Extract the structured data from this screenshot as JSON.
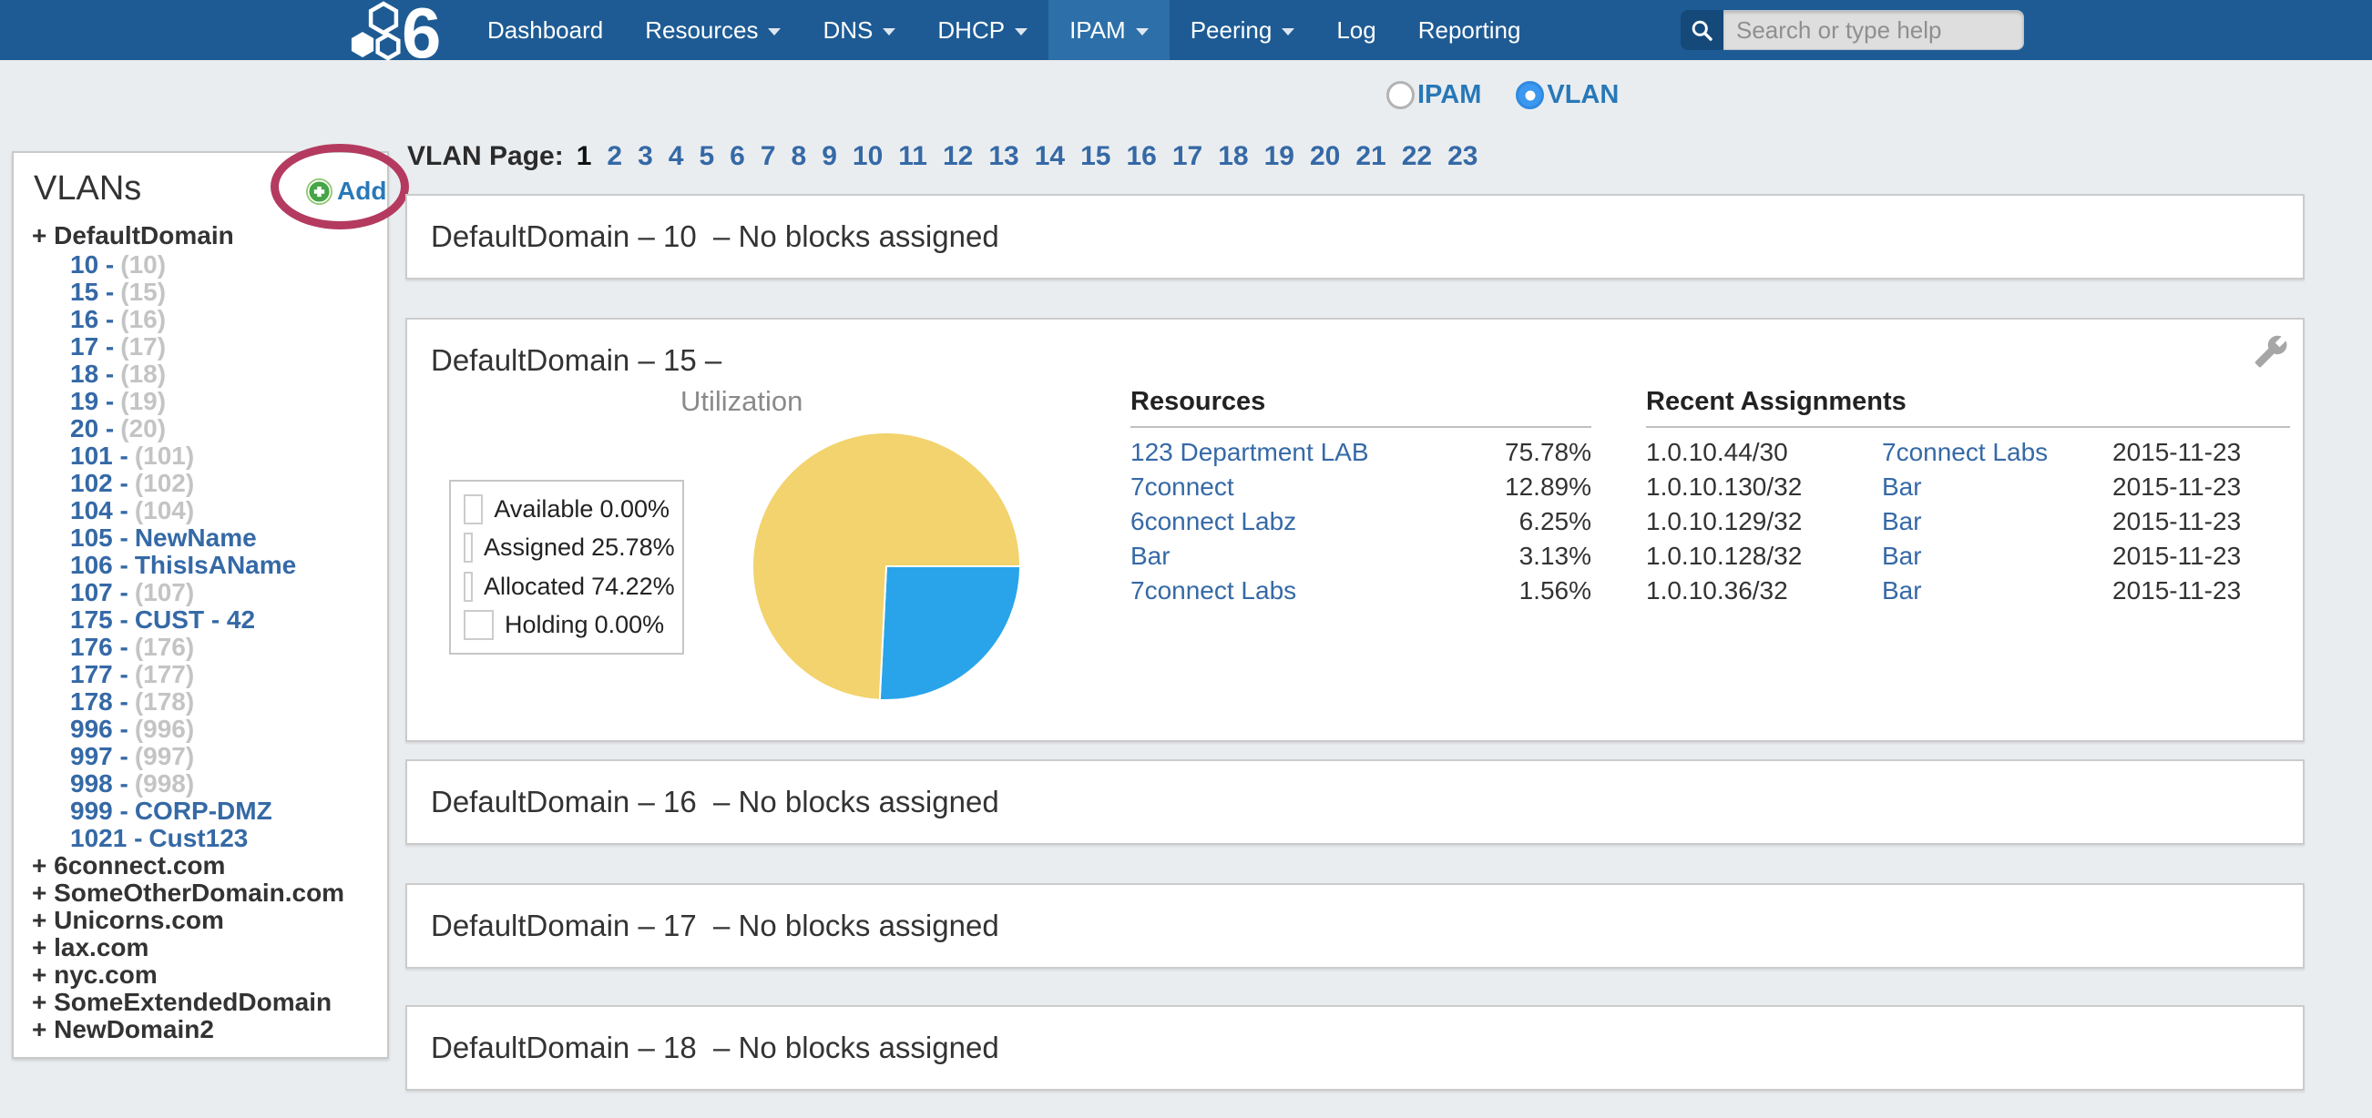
{
  "colors": {
    "page_bg": "#eaedf0",
    "header_bg": "#1e5b94",
    "header_active": "#2d70a9",
    "icon_navy": "#15497a",
    "link": "#3569a6",
    "label_blue": "#2878b8",
    "radio_blue": "#3b97ef",
    "annotation": "#b43a60",
    "panel_border": "#cbcbcb",
    "muted_gray": "#c4c4c4",
    "text_dark": "#333333",
    "add_green": "#3fae49"
  },
  "nav": {
    "brand": "6",
    "items": [
      {
        "label": "Dashboard"
      },
      {
        "label": "Resources",
        "caret": true
      },
      {
        "label": "DNS",
        "caret": true
      },
      {
        "label": "DHCP",
        "caret": true
      },
      {
        "label": "IPAM",
        "caret": true,
        "active": true
      },
      {
        "label": "Peering",
        "caret": true
      },
      {
        "label": "Log"
      },
      {
        "label": "Reporting"
      }
    ],
    "search_placeholder": "Search or type help"
  },
  "view_toggle": {
    "options": [
      {
        "label": "IPAM",
        "selected": false
      },
      {
        "label": "VLAN",
        "selected": true
      }
    ]
  },
  "sidebar": {
    "title": "VLANs",
    "add_label": "Add",
    "root_domain": "+ DefaultDomain",
    "vlans": [
      {
        "id_label": "10 -",
        "name": "(10)",
        "custom": false
      },
      {
        "id_label": "15 -",
        "name": "(15)",
        "custom": false
      },
      {
        "id_label": "16 -",
        "name": "(16)",
        "custom": false
      },
      {
        "id_label": "17 -",
        "name": "(17)",
        "custom": false
      },
      {
        "id_label": "18 -",
        "name": "(18)",
        "custom": false
      },
      {
        "id_label": "19 -",
        "name": "(19)",
        "custom": false
      },
      {
        "id_label": "20 -",
        "name": "(20)",
        "custom": false
      },
      {
        "id_label": "101 -",
        "name": "(101)",
        "custom": false
      },
      {
        "id_label": "102 -",
        "name": "(102)",
        "custom": false
      },
      {
        "id_label": "104 -",
        "name": "(104)",
        "custom": false
      },
      {
        "id_label": "105 -",
        "name": "NewName",
        "custom": true
      },
      {
        "id_label": "106 -",
        "name": "ThisIsAName",
        "custom": true
      },
      {
        "id_label": "107 -",
        "name": "(107)",
        "custom": false
      },
      {
        "id_label": "175 -",
        "name": "CUST - 42",
        "custom": true
      },
      {
        "id_label": "176 -",
        "name": "(176)",
        "custom": false
      },
      {
        "id_label": "177 -",
        "name": "(177)",
        "custom": false
      },
      {
        "id_label": "178 -",
        "name": "(178)",
        "custom": false
      },
      {
        "id_label": "996 -",
        "name": "(996)",
        "custom": false
      },
      {
        "id_label": "997 -",
        "name": "(997)",
        "custom": false
      },
      {
        "id_label": "998 -",
        "name": "(998)",
        "custom": false
      },
      {
        "id_label": "999 -",
        "name": "CORP-DMZ",
        "custom": true
      },
      {
        "id_label": "1021 -",
        "name": "Cust123",
        "custom": true
      }
    ],
    "domains": [
      {
        "label": "+ 6connect.com"
      },
      {
        "label": "+ SomeOtherDomain.com"
      },
      {
        "label": "+ Unicorns.com"
      },
      {
        "label": "+ lax.com"
      },
      {
        "label": "+ nyc.com"
      },
      {
        "label": "+ SomeExtendedDomain"
      },
      {
        "label": "+ NewDomain2"
      }
    ]
  },
  "pagination": {
    "label": "VLAN Page:",
    "pages": [
      {
        "n": "1",
        "current": true
      },
      {
        "n": "2"
      },
      {
        "n": "3"
      },
      {
        "n": "4"
      },
      {
        "n": "5"
      },
      {
        "n": "6"
      },
      {
        "n": "7"
      },
      {
        "n": "8"
      },
      {
        "n": "9"
      },
      {
        "n": "10"
      },
      {
        "n": "11"
      },
      {
        "n": "12"
      },
      {
        "n": "13"
      },
      {
        "n": "14"
      },
      {
        "n": "15"
      },
      {
        "n": "16"
      },
      {
        "n": "17"
      },
      {
        "n": "18"
      },
      {
        "n": "19"
      },
      {
        "n": "20"
      },
      {
        "n": "21"
      },
      {
        "n": "22"
      },
      {
        "n": "23"
      }
    ]
  },
  "main": {
    "panels_simple": [
      {
        "title": "DefaultDomain – 10  – No blocks assigned"
      },
      {
        "title": "DefaultDomain – 16  – No blocks assigned"
      },
      {
        "title": "DefaultDomain – 17  – No blocks assigned"
      },
      {
        "title": "DefaultDomain – 18  – No blocks assigned"
      }
    ],
    "vlan15": {
      "title": "DefaultDomain – 15 –",
      "resources": {
        "header": "Resources",
        "rows": [
          {
            "name": "123 Department LAB",
            "pct": "75.78%"
          },
          {
            "name": "7connect",
            "pct": "12.89%"
          },
          {
            "name": "6connect Labz",
            "pct": "6.25%"
          },
          {
            "name": "Bar",
            "pct": "3.13%"
          },
          {
            "name": "7connect Labs",
            "pct": "1.56%"
          }
        ]
      },
      "recent": {
        "header": "Recent Assignments",
        "rows": [
          {
            "block": "1.0.10.44/30",
            "resource": "7connect Labs",
            "date": "2015-11-23"
          },
          {
            "block": "1.0.10.130/32",
            "resource": "Bar",
            "date": "2015-11-23"
          },
          {
            "block": "1.0.10.129/32",
            "resource": "Bar",
            "date": "2015-11-23"
          },
          {
            "block": "1.0.10.128/32",
            "resource": "Bar",
            "date": "2015-11-23"
          },
          {
            "block": "1.0.10.36/32",
            "resource": "Bar",
            "date": "2015-11-23"
          }
        ]
      }
    }
  },
  "chart_data": {
    "type": "pie",
    "title": "Utilization",
    "start_angle": "east-clockwise",
    "slices": [
      {
        "label": "Available",
        "value": 0.0,
        "pct_label": "0.00%",
        "color": "#33bf7f"
      },
      {
        "label": "Assigned",
        "value": 25.78,
        "pct_label": "25.78%",
        "color": "#29a4ea"
      },
      {
        "label": "Allocated",
        "value": 74.22,
        "pct_label": "74.22%",
        "color": "#f2d36d"
      },
      {
        "label": "Holding",
        "value": 0.0,
        "pct_label": "0.00%",
        "color": "#f9a13c"
      }
    ],
    "legend_position": "left"
  }
}
